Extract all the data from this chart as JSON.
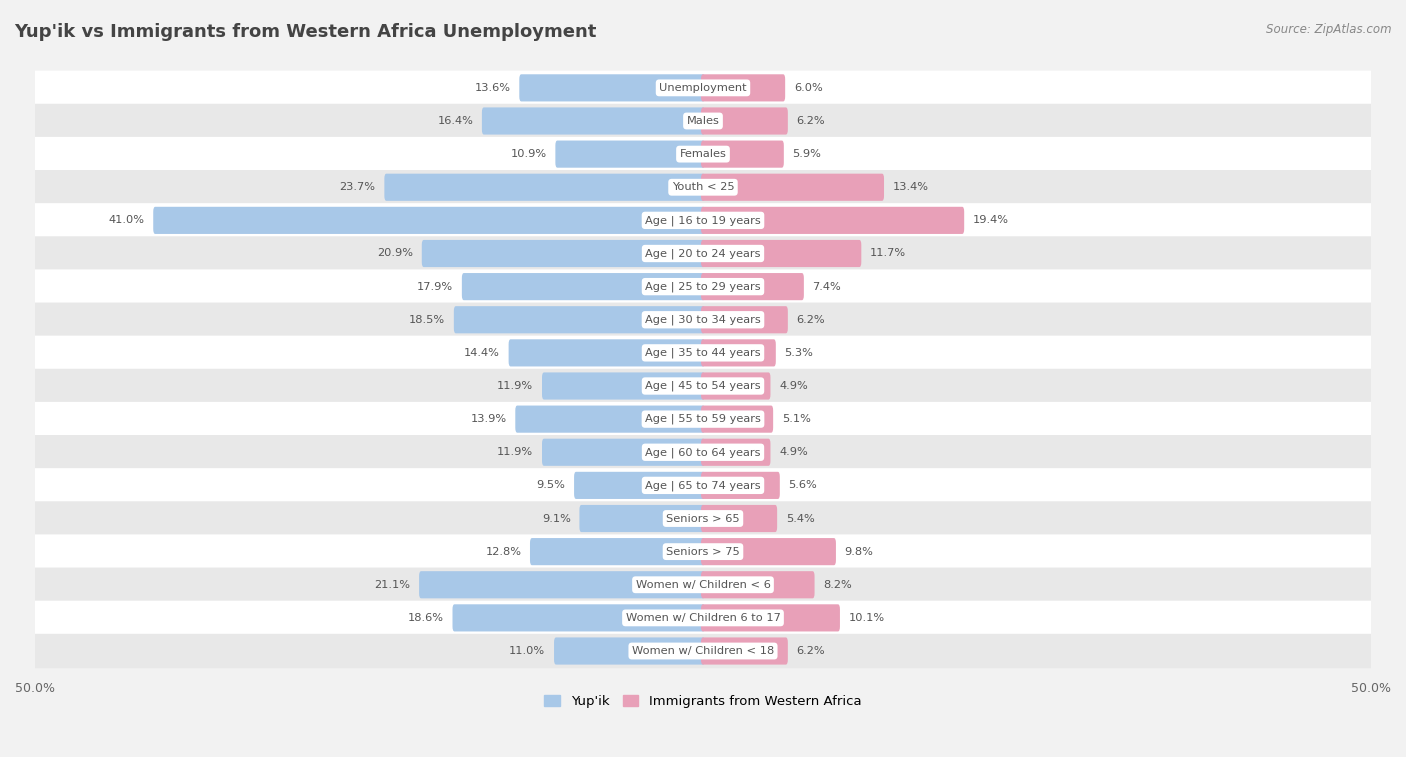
{
  "title": "Yup'ik vs Immigrants from Western Africa Unemployment",
  "source": "Source: ZipAtlas.com",
  "categories": [
    "Unemployment",
    "Males",
    "Females",
    "Youth < 25",
    "Age | 16 to 19 years",
    "Age | 20 to 24 years",
    "Age | 25 to 29 years",
    "Age | 30 to 34 years",
    "Age | 35 to 44 years",
    "Age | 45 to 54 years",
    "Age | 55 to 59 years",
    "Age | 60 to 64 years",
    "Age | 65 to 74 years",
    "Seniors > 65",
    "Seniors > 75",
    "Women w/ Children < 6",
    "Women w/ Children 6 to 17",
    "Women w/ Children < 18"
  ],
  "yupik_values": [
    13.6,
    16.4,
    10.9,
    23.7,
    41.0,
    20.9,
    17.9,
    18.5,
    14.4,
    11.9,
    13.9,
    11.9,
    9.5,
    9.1,
    12.8,
    21.1,
    18.6,
    11.0
  ],
  "western_africa_values": [
    6.0,
    6.2,
    5.9,
    13.4,
    19.4,
    11.7,
    7.4,
    6.2,
    5.3,
    4.9,
    5.1,
    4.9,
    5.6,
    5.4,
    9.8,
    8.2,
    10.1,
    6.2
  ],
  "yupik_color": "#a8c8e8",
  "western_africa_color": "#e8a0b8",
  "yupik_label": "Yup'ik",
  "western_africa_label": "Immigrants from Western Africa",
  "axis_limit": 50.0,
  "background_color": "#f2f2f2",
  "row_white": "#ffffff",
  "row_gray": "#e8e8e8",
  "title_color": "#444444",
  "label_color": "#555555",
  "value_color": "#555555"
}
